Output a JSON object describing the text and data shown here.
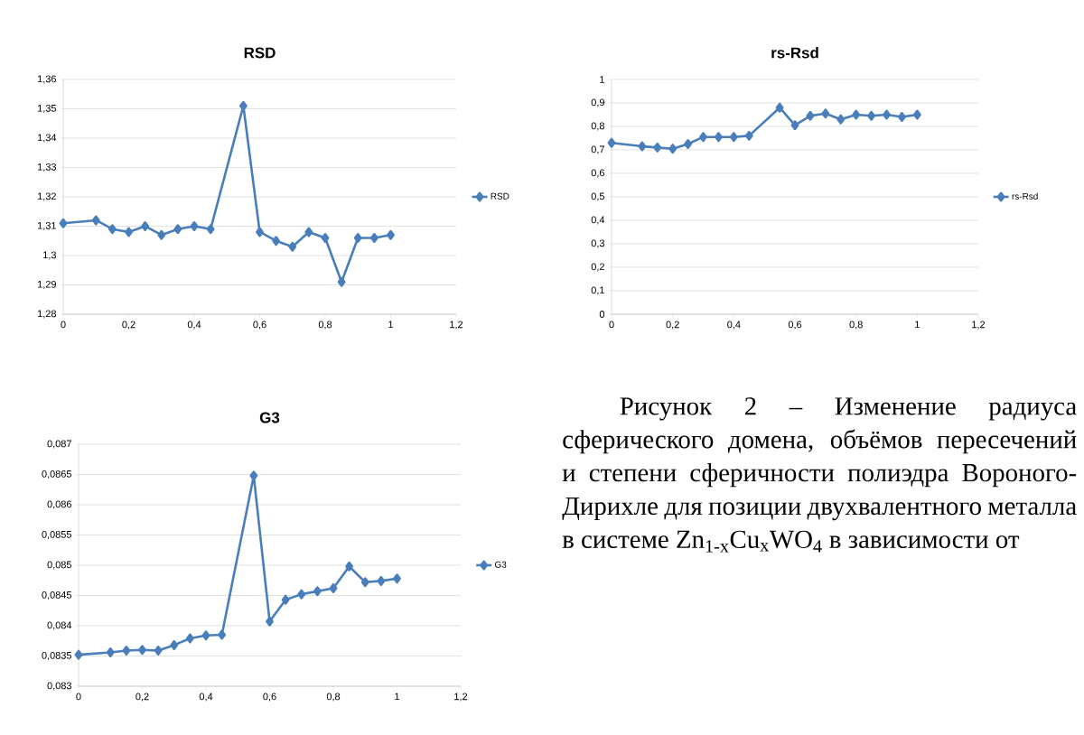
{
  "chart_data": [
    {
      "type": "line",
      "title": "RSD",
      "x": [
        0,
        0.1,
        0.15,
        0.2,
        0.25,
        0.3,
        0.35,
        0.4,
        0.45,
        0.55,
        0.6,
        0.65,
        0.7,
        0.75,
        0.8,
        0.85,
        0.9,
        0.95,
        1
      ],
      "series": [
        {
          "name": "RSD",
          "color": "#4a7ebb",
          "values": [
            1.311,
            1.312,
            1.309,
            1.308,
            1.31,
            1.307,
            1.309,
            1.31,
            1.309,
            1.351,
            1.308,
            1.305,
            1.303,
            1.308,
            1.306,
            1.291,
            1.306,
            1.306,
            1.307
          ]
        }
      ],
      "xlim": [
        0,
        1.2
      ],
      "xticks": [
        0,
        {
          "value": 0.2,
          "label": "0,2"
        },
        {
          "value": 0.4,
          "label": "0,4"
        },
        {
          "value": 0.6,
          "label": "0,6"
        },
        {
          "value": 0.8,
          "label": "0,8"
        },
        1,
        {
          "value": 1.2,
          "label": "1,2"
        }
      ],
      "ylim": [
        1.28,
        1.36
      ],
      "yticks": [
        {
          "value": 1.28,
          "label": "1,28"
        },
        {
          "value": 1.29,
          "label": "1,29"
        },
        {
          "value": 1.3,
          "label": "1,3"
        },
        {
          "value": 1.31,
          "label": "1,31"
        },
        {
          "value": 1.32,
          "label": "1,32"
        },
        {
          "value": 1.33,
          "label": "1,33"
        },
        {
          "value": 1.34,
          "label": "1,34"
        },
        {
          "value": 1.35,
          "label": "1,35"
        },
        {
          "value": 1.36,
          "label": "1,36"
        }
      ],
      "grid": "y",
      "legend": "right",
      "marker": "diamond",
      "line_style": "solid"
    },
    {
      "type": "line",
      "title": "rs-Rsd",
      "x": [
        0,
        0.1,
        0.15,
        0.2,
        0.25,
        0.3,
        0.35,
        0.4,
        0.45,
        0.55,
        0.6,
        0.65,
        0.7,
        0.75,
        0.8,
        0.85,
        0.9,
        0.95,
        1
      ],
      "series": [
        {
          "name": "rs-Rsd",
          "color": "#4a7ebb",
          "values": [
            0.73,
            0.715,
            0.71,
            0.705,
            0.725,
            0.755,
            0.755,
            0.755,
            0.76,
            0.88,
            0.805,
            0.845,
            0.855,
            0.83,
            0.85,
            0.845,
            0.85,
            0.84,
            0.85
          ]
        }
      ],
      "xlim": [
        0,
        1.2
      ],
      "xticks": [
        0,
        {
          "value": 0.2,
          "label": "0,2"
        },
        {
          "value": 0.4,
          "label": "0,4"
        },
        {
          "value": 0.6,
          "label": "0,6"
        },
        {
          "value": 0.8,
          "label": "0,8"
        },
        1,
        {
          "value": 1.2,
          "label": "1,2"
        }
      ],
      "ylim": [
        0,
        1
      ],
      "yticks": [
        0,
        {
          "value": 0.1,
          "label": "0,1"
        },
        {
          "value": 0.2,
          "label": "0,2"
        },
        {
          "value": 0.3,
          "label": "0,3"
        },
        {
          "value": 0.4,
          "label": "0,4"
        },
        {
          "value": 0.5,
          "label": "0,5"
        },
        {
          "value": 0.6,
          "label": "0,6"
        },
        {
          "value": 0.7,
          "label": "0,7"
        },
        {
          "value": 0.8,
          "label": "0,8"
        },
        {
          "value": 0.9,
          "label": "0,9"
        },
        1
      ],
      "grid": "y",
      "legend": "right",
      "marker": "diamond",
      "line_style": "solid"
    },
    {
      "type": "line",
      "title": "G3",
      "x": [
        0,
        0.1,
        0.15,
        0.2,
        0.25,
        0.3,
        0.35,
        0.4,
        0.45,
        0.55,
        0.6,
        0.65,
        0.7,
        0.75,
        0.8,
        0.85,
        0.9,
        0.95,
        1
      ],
      "series": [
        {
          "name": "G3",
          "color": "#4a7ebb",
          "values": [
            0.08352,
            0.08356,
            0.08359,
            0.0836,
            0.08359,
            0.08368,
            0.08379,
            0.08384,
            0.08385,
            0.08648,
            0.08407,
            0.08443,
            0.08452,
            0.08457,
            0.08462,
            0.08498,
            0.08472,
            0.08474,
            0.08478
          ]
        }
      ],
      "xlim": [
        0,
        1.2
      ],
      "xticks": [
        0,
        {
          "value": 0.2,
          "label": "0,2"
        },
        {
          "value": 0.4,
          "label": "0,4"
        },
        {
          "value": 0.6,
          "label": "0,6"
        },
        {
          "value": 0.8,
          "label": "0,8"
        },
        1,
        {
          "value": 1.2,
          "label": "1,2"
        }
      ],
      "ylim": [
        0.083,
        0.087
      ],
      "yticks": [
        {
          "value": 0.083,
          "label": "0,083"
        },
        {
          "value": 0.0835,
          "label": "0,0835"
        },
        {
          "value": 0.084,
          "label": "0,084"
        },
        {
          "value": 0.0845,
          "label": "0,0845"
        },
        {
          "value": 0.085,
          "label": "0,085"
        },
        {
          "value": 0.0855,
          "label": "0,0855"
        },
        {
          "value": 0.086,
          "label": "0,086"
        },
        {
          "value": 0.0865,
          "label": "0,0865"
        },
        {
          "value": 0.087,
          "label": "0,087"
        }
      ],
      "grid": "y",
      "legend": "right",
      "marker": "diamond",
      "line_style": "solid"
    },
    {
      "type": "other",
      "annotations": [
        "Рисунок 2 – Изменение радиуса сферического домена, объёмов пересечений и степени сферичности полиэдра Вороного-Дирихле для позиции двухвалентного металла в системе Zn$_{1-x}$Cu$_{x}$WO$_{4}$ в зависимости от"
      ]
    }
  ]
}
